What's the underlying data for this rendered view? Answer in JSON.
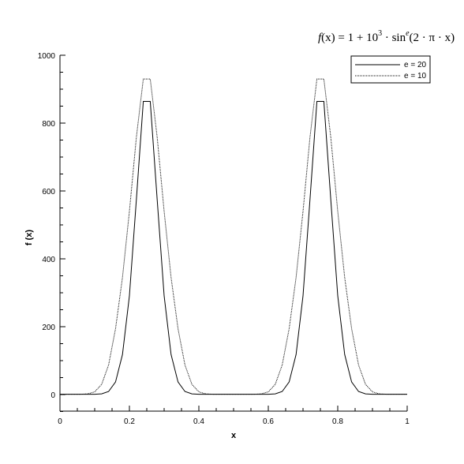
{
  "chart_data": {
    "type": "line",
    "title": "f(x) = 1 + 10³ · sinᵉ(2 · π · x)",
    "title_parts": {
      "lhs": "f",
      "lhs_arg": "(x)",
      "eq": " = 1 + 10",
      "exp1": "3",
      "mid": " · sin",
      "exp2": "e",
      "arg": "(2 · π · x)"
    },
    "xlabel": "x",
    "ylabel": "f (x)",
    "xlim": [
      0,
      1
    ],
    "ylim": [
      -50,
      1000
    ],
    "xticks": [
      0,
      0.2,
      0.4,
      0.6,
      0.8,
      1
    ],
    "xtick_labels": [
      "0",
      "0.2",
      "0.4",
      "0.6",
      "0.8",
      "1"
    ],
    "yticks": [
      0,
      200,
      400,
      600,
      800,
      1000
    ],
    "ytick_labels": [
      "0",
      "200",
      "400",
      "600",
      "800",
      "1000"
    ],
    "grid": false,
    "legend_position": "top-right",
    "x": [
      0,
      0.02,
      0.04,
      0.06,
      0.08,
      0.1,
      0.12,
      0.14,
      0.16,
      0.18,
      0.2,
      0.22,
      0.24,
      0.26,
      0.28,
      0.3,
      0.32,
      0.34,
      0.36,
      0.38,
      0.4,
      0.42,
      0.44,
      0.46,
      0.48,
      0.5,
      0.52,
      0.54,
      0.56,
      0.58,
      0.6,
      0.62,
      0.64,
      0.66,
      0.68,
      0.7,
      0.72,
      0.74,
      0.76,
      0.78,
      0.8,
      0.82,
      0.84,
      0.86,
      0.88,
      0.9,
      0.92,
      0.94,
      0.96,
      0.98,
      1
    ],
    "series": [
      {
        "name": "e = 20",
        "style": "solid",
        "color": "#000000",
        "values": [
          1,
          1,
          1,
          1,
          1,
          1,
          2,
          9,
          37,
          118,
          291,
          574,
          864,
          864,
          574,
          291,
          118,
          37,
          9,
          2,
          1,
          1,
          1,
          1,
          1,
          1,
          1,
          1,
          1,
          1,
          1,
          2,
          9,
          37,
          118,
          291,
          574,
          864,
          864,
          574,
          291,
          118,
          37,
          9,
          2,
          1,
          1,
          1,
          1,
          1,
          1
        ]
      },
      {
        "name": "e = 10",
        "style": "dotted",
        "color": "#000000",
        "values": [
          1,
          1,
          1,
          1,
          2,
          8,
          30,
          87,
          194,
          345,
          540,
          758,
          930,
          930,
          758,
          540,
          345,
          194,
          87,
          30,
          8,
          2,
          1,
          1,
          1,
          1,
          1,
          1,
          1,
          2,
          8,
          30,
          87,
          194,
          345,
          540,
          758,
          930,
          930,
          758,
          540,
          345,
          194,
          87,
          30,
          8,
          2,
          1,
          1,
          1,
          1
        ]
      }
    ]
  }
}
